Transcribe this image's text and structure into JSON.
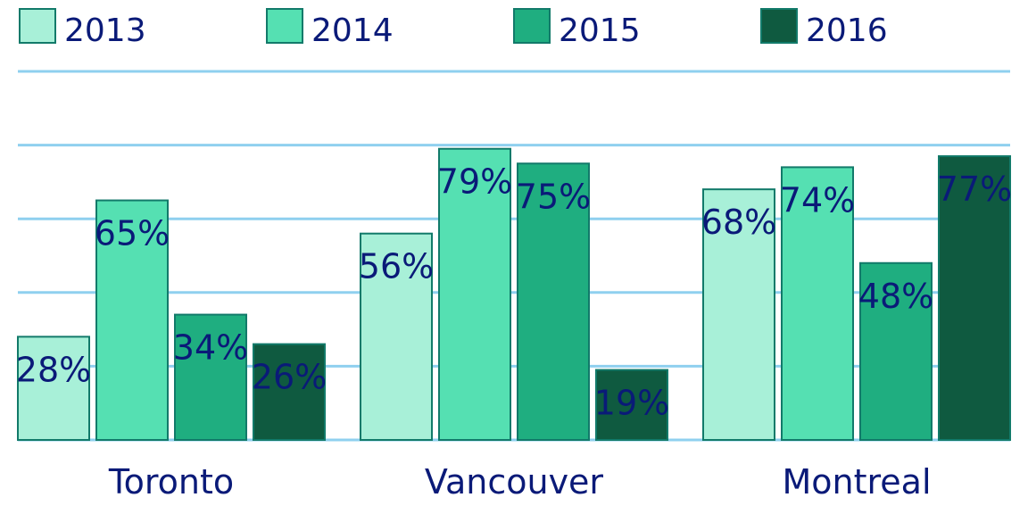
{
  "chart_data": {
    "type": "bar",
    "categories": [
      "Toronto",
      "Vancouver",
      "Montreal"
    ],
    "series": [
      {
        "name": "2013",
        "values": [
          28,
          56,
          68
        ],
        "labels": [
          "28%",
          "56%",
          "68%"
        ],
        "color": "#a8f0d8"
      },
      {
        "name": "2014",
        "values": [
          65,
          79,
          74
        ],
        "labels": [
          "65%",
          "79%",
          "74%"
        ],
        "color": "#55e0b2"
      },
      {
        "name": "2015",
        "values": [
          34,
          75,
          48
        ],
        "labels": [
          "34%",
          "75%",
          "48%"
        ],
        "color": "#1fae80"
      },
      {
        "name": "2016",
        "values": [
          26,
          19,
          77
        ],
        "labels": [
          "26%",
          "19%",
          "77%"
        ],
        "color": "#0f5a40"
      }
    ],
    "ylim": [
      0,
      100
    ],
    "grid": true,
    "legend_position": "top",
    "colors": {
      "grid": "#8fd0ef",
      "bar_stroke": "#127a6a",
      "text": "#0a1a78"
    }
  }
}
